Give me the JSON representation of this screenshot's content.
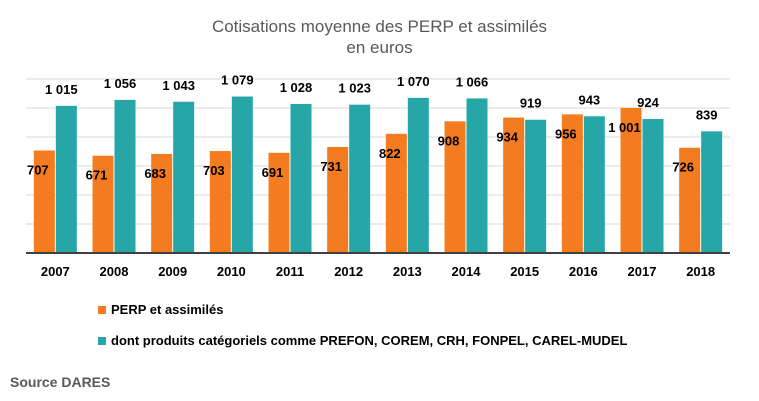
{
  "chart_data": {
    "type": "bar",
    "title": "Cotisations moyenne des PERP et assimilés",
    "subtitle": "en euros",
    "categories": [
      "2007",
      "2008",
      "2009",
      "2010",
      "2011",
      "2012",
      "2013",
      "2014",
      "2015",
      "2016",
      "2017",
      "2018"
    ],
    "series": [
      {
        "name": "PERP et assimilés",
        "color": "#F47B20",
        "values": [
          707,
          671,
          683,
          703,
          691,
          731,
          822,
          908,
          934,
          956,
          1001,
          726
        ],
        "labels": [
          "707",
          "671",
          "683",
          "703",
          "691",
          "731",
          "822",
          "908",
          "934",
          "956",
          "1 001",
          "726"
        ]
      },
      {
        "name": "dont produits catégoriels comme PREFON, COREM, CRH, FONPEL, CAREL-MUDEL",
        "color": "#26A6A6",
        "values": [
          1015,
          1056,
          1043,
          1079,
          1028,
          1023,
          1070,
          1066,
          919,
          943,
          924,
          839
        ],
        "labels": [
          "1 015",
          "1 056",
          "1 043",
          "1 079",
          "1 028",
          "1 023",
          "1 070",
          "1 066",
          "919",
          "943",
          "924",
          "839"
        ]
      }
    ],
    "xlabel": "",
    "ylabel": "",
    "ylim": [
      0,
      1200
    ],
    "grid": true,
    "legend_position": "bottom"
  },
  "source": "Source DARES"
}
